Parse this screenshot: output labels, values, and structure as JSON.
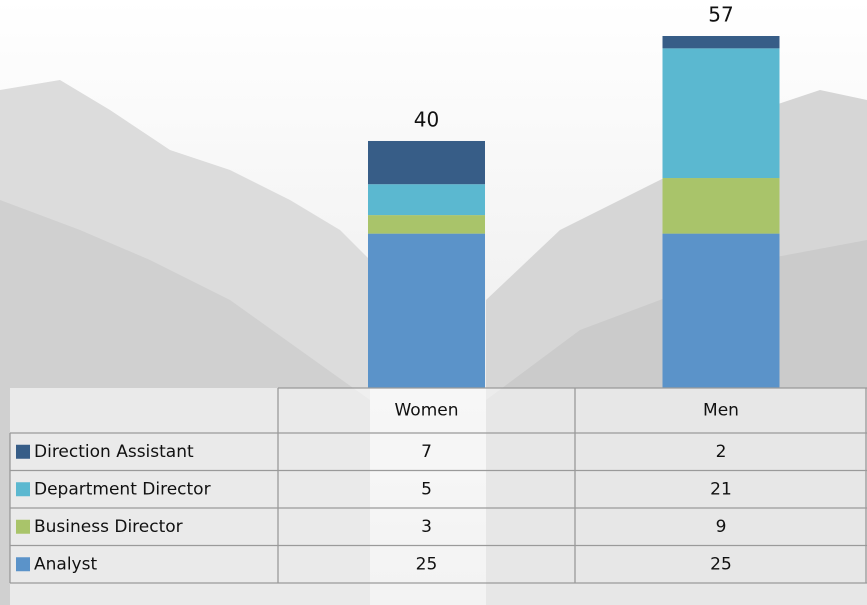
{
  "chart_data": {
    "type": "stacked-bar",
    "categories": [
      "Women",
      "Men"
    ],
    "totals": [
      40,
      57
    ],
    "series": [
      {
        "name": "Direction Assistant",
        "color": "#375d87",
        "values": [
          7,
          2
        ]
      },
      {
        "name": "Department Director",
        "color": "#5bb8d0",
        "values": [
          5,
          21
        ]
      },
      {
        "name": "Business Director",
        "color": "#a9c46a",
        "values": [
          3,
          9
        ]
      },
      {
        "name": "Analyst",
        "color": "#5b93c9",
        "values": [
          25,
          25
        ]
      }
    ]
  }
}
